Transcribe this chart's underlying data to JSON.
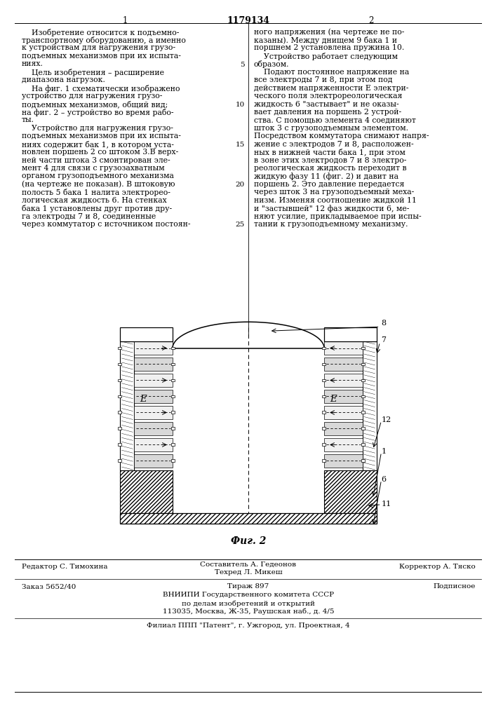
{
  "bg_color": "#ffffff",
  "page_width": 7.07,
  "page_height": 10.0,
  "patent_number": "1179134",
  "col1_header": "1",
  "col2_header": "2",
  "text_col1": [
    "    Изобретение относится к подъемно-",
    "транспортному оборудованию, а именно",
    "к устройствам для нагружения грузо-",
    "подъемных механизмов при их испыта-",
    "ниях.",
    "    Цель изобретения – расширение",
    "диапазона нагрузок.",
    "    На фиг. 1 схематически изображено",
    "устройство для нагружения грузо-",
    "подъемных механизмов, общий вид;",
    "на фиг. 2 – устройство во время рабо-",
    "ты.",
    "    Устройство для нагружения грузо-",
    "подъемных механизмов при их испыта-",
    "ниях содержит бак 1, в котором уста-",
    "новлен поршень 2 со штоком 3.В верх-",
    "ней части штока 3 смонтирован эле-",
    "мент 4 для связи с грузозахватным",
    "органом грузоподъемного механизма",
    "(на чертеже не показан). В штоковую",
    "полость 5 бака 1 налита электрорео-",
    "логическая жидкость 6. На стенках",
    "бака 1 установлены друг против дру-",
    "га электроды 7 и 8, соединенные",
    "через коммутатор с источником постоян-"
  ],
  "line_numbers": [
    5,
    10,
    15,
    20,
    25
  ],
  "text_col2": [
    "ного напряжения (на чертеже не по-",
    "казаны). Между днищем 9 бака 1 и",
    "поршнем 2 установлена пружина 10.",
    "    Устройство работает следующим",
    "образом.",
    "    Подают постоянное напряжение на",
    "все электроды 7 и 8, при этом под",
    "действием напряженности E электри-",
    "ческого поля электрореологическая",
    "жидкость 6 \"застывает\" и не оказы-",
    "вает давления на поршень 2 устрой-",
    "ства. С помощью элемента 4 соединяют",
    "шток 3 с грузоподъемным элементом.",
    "Посредством коммутатора снимают напря-",
    "жение с электродов 7 и 8, расположен-",
    "ных в нижней части бака 1, при этом",
    "в зоне этих электродов 7 и 8 электро-",
    "реологическая жидкость переходит в",
    "жидкую фазу 11 (фиг. 2) и давит на",
    "поршень 2. Это давление передается",
    "через шток 3 на грузоподъемный меха-",
    "низм. Изменяя соотношение жидкой 11",
    "и \"застывшей\" 12 фаз жидкости 6, ме-",
    "няют усилие, прикладываемое при испы-",
    "тании к грузоподъемному механизму."
  ],
  "fig2_label": "Фиг. 2",
  "footer_editor": "Редактор С. Тимохина",
  "footer_compiler": "Составитель А. Гедеонов",
  "footer_techred": "Техред Л. Микеш",
  "footer_corrector": "Корректор А. Тяско",
  "footer_order": "Заказ 5652/40",
  "footer_tirazh": "Тираж 897",
  "footer_podpisnoe": "Подписное",
  "footer_vniipi1": "ВНИИПИ Государственного комитета СССР",
  "footer_vniipi2": "по делам изобретений и открытий",
  "footer_addr": "113035, Москва, Ж-35, Раушская наб., д. 4/5",
  "footer_filial": "Филиал ППП \"Патент\", г. Ужгород, ул. Проектная, 4"
}
